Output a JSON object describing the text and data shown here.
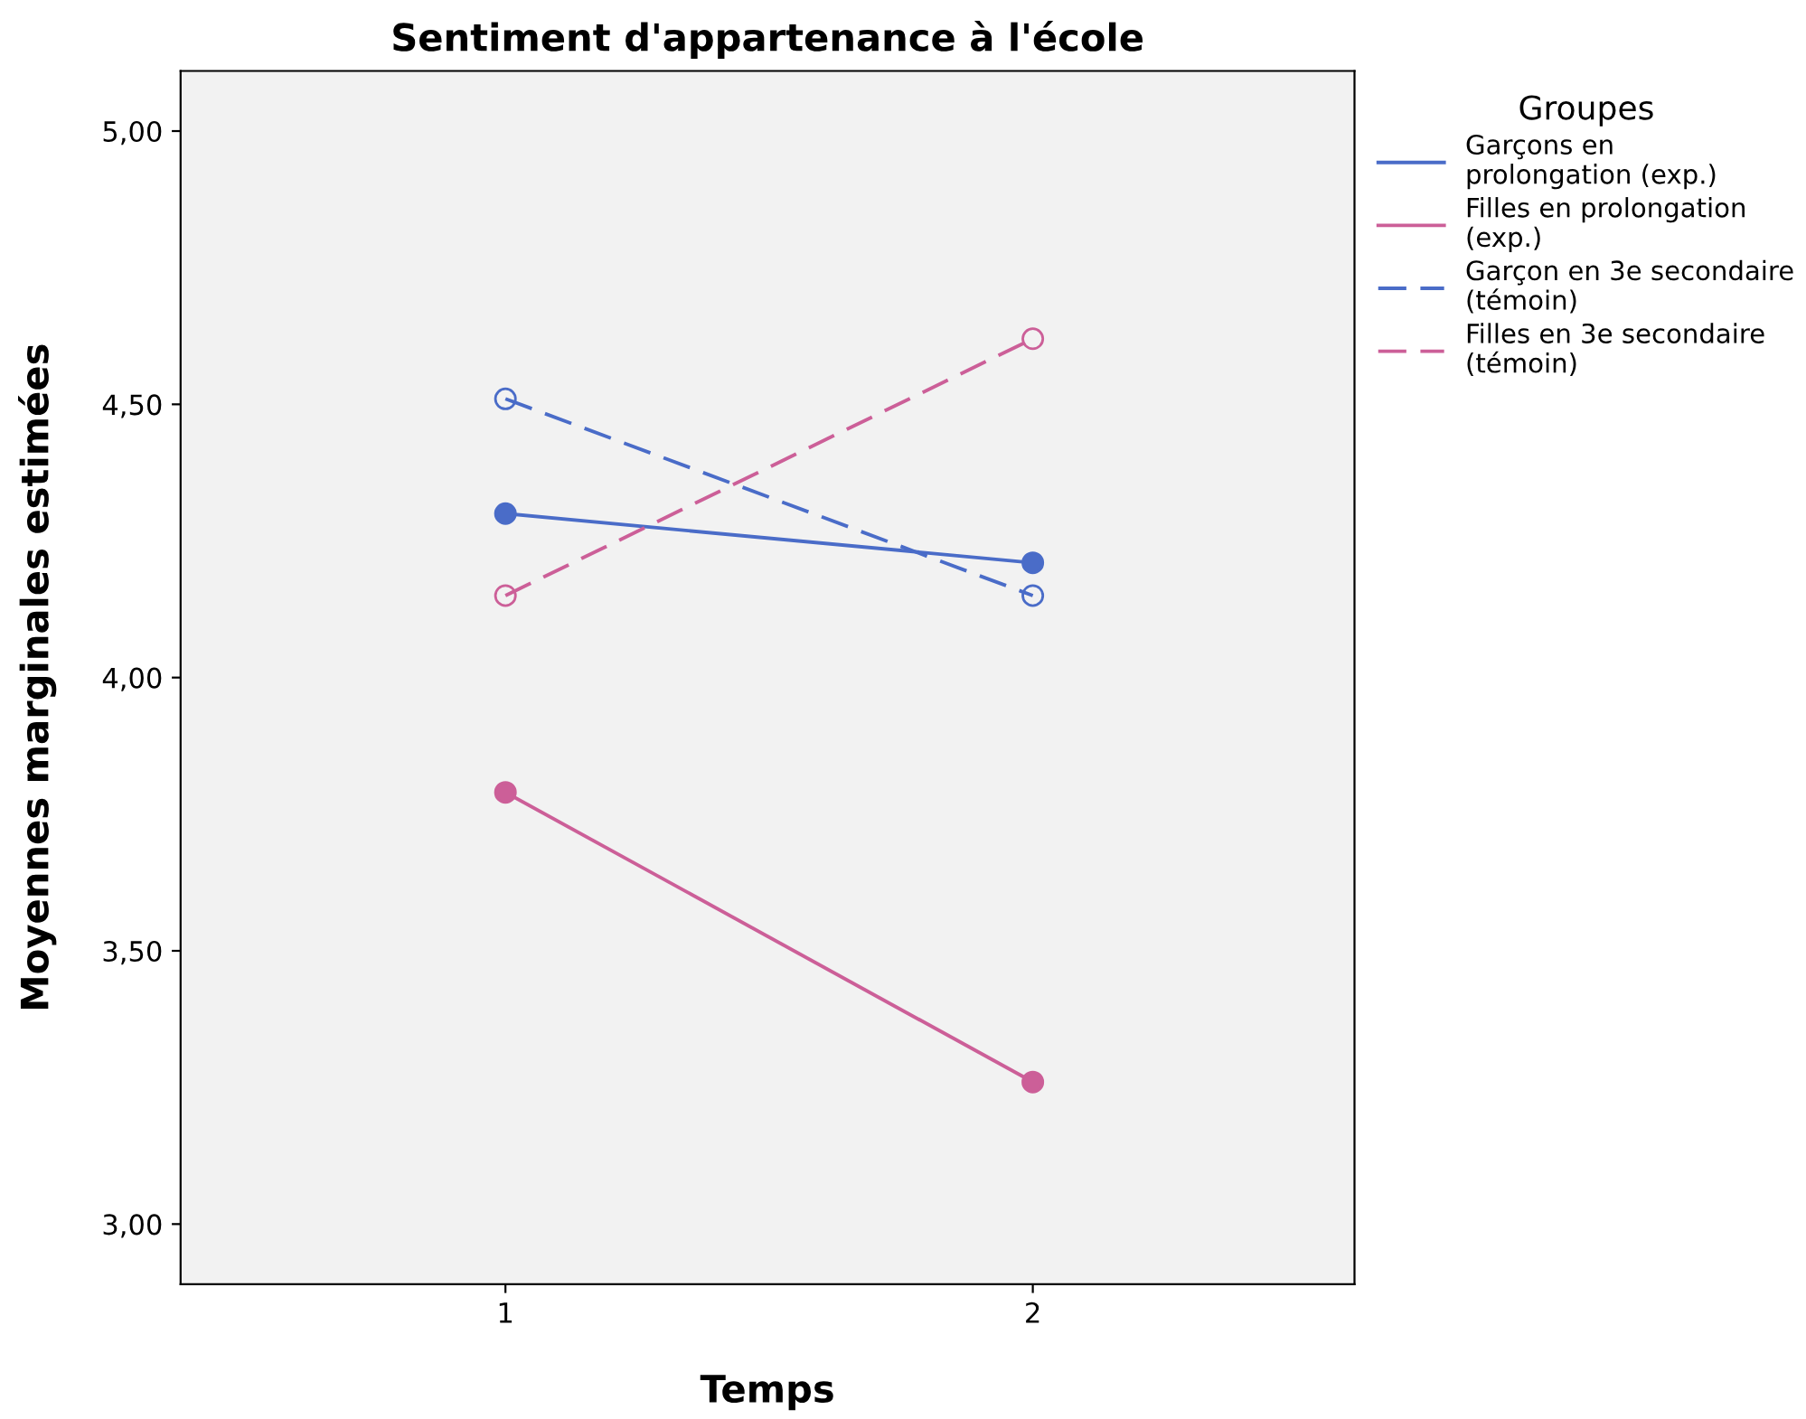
{
  "chart_data": {
    "type": "line",
    "title": "Sentiment d'appartenance à l'école",
    "xlabel": "Temps",
    "ylabel": "Moyennes marginales estimées",
    "legend_title": "Groupes",
    "categories": [
      "1",
      "2"
    ],
    "series": [
      {
        "name": "Garçons en\nprolongation (exp.)",
        "color": "#4a6cc8",
        "values": [
          4.3,
          4.21
        ],
        "line_style": "solid",
        "marker": "circle"
      },
      {
        "name": "Filles en prolongation\n(exp.)",
        "color": "#cc5f98",
        "values": [
          3.79,
          3.26
        ],
        "line_style": "solid",
        "marker": "circle"
      },
      {
        "name": "Garçon en 3e secondaire\n(témoin)",
        "color": "#4a6cc8",
        "values": [
          4.51,
          4.15
        ],
        "line_style": "dashed",
        "marker": "circle"
      },
      {
        "name": "Filles en 3e secondaire\n(témoin)",
        "color": "#cc5f98",
        "values": [
          4.15,
          4.62
        ],
        "line_style": "dashed",
        "marker": "circle"
      }
    ],
    "ylim": [
      2.89,
      5.11
    ],
    "yticks": [
      {
        "value": 3,
        "label": "3,00"
      },
      {
        "value": 3.5,
        "label": "3,50"
      },
      {
        "value": 4,
        "label": "4,00"
      },
      {
        "value": 4.5,
        "label": "4,50"
      },
      {
        "value": 5,
        "label": "5,00"
      }
    ],
    "grid": false,
    "legend": "right"
  }
}
